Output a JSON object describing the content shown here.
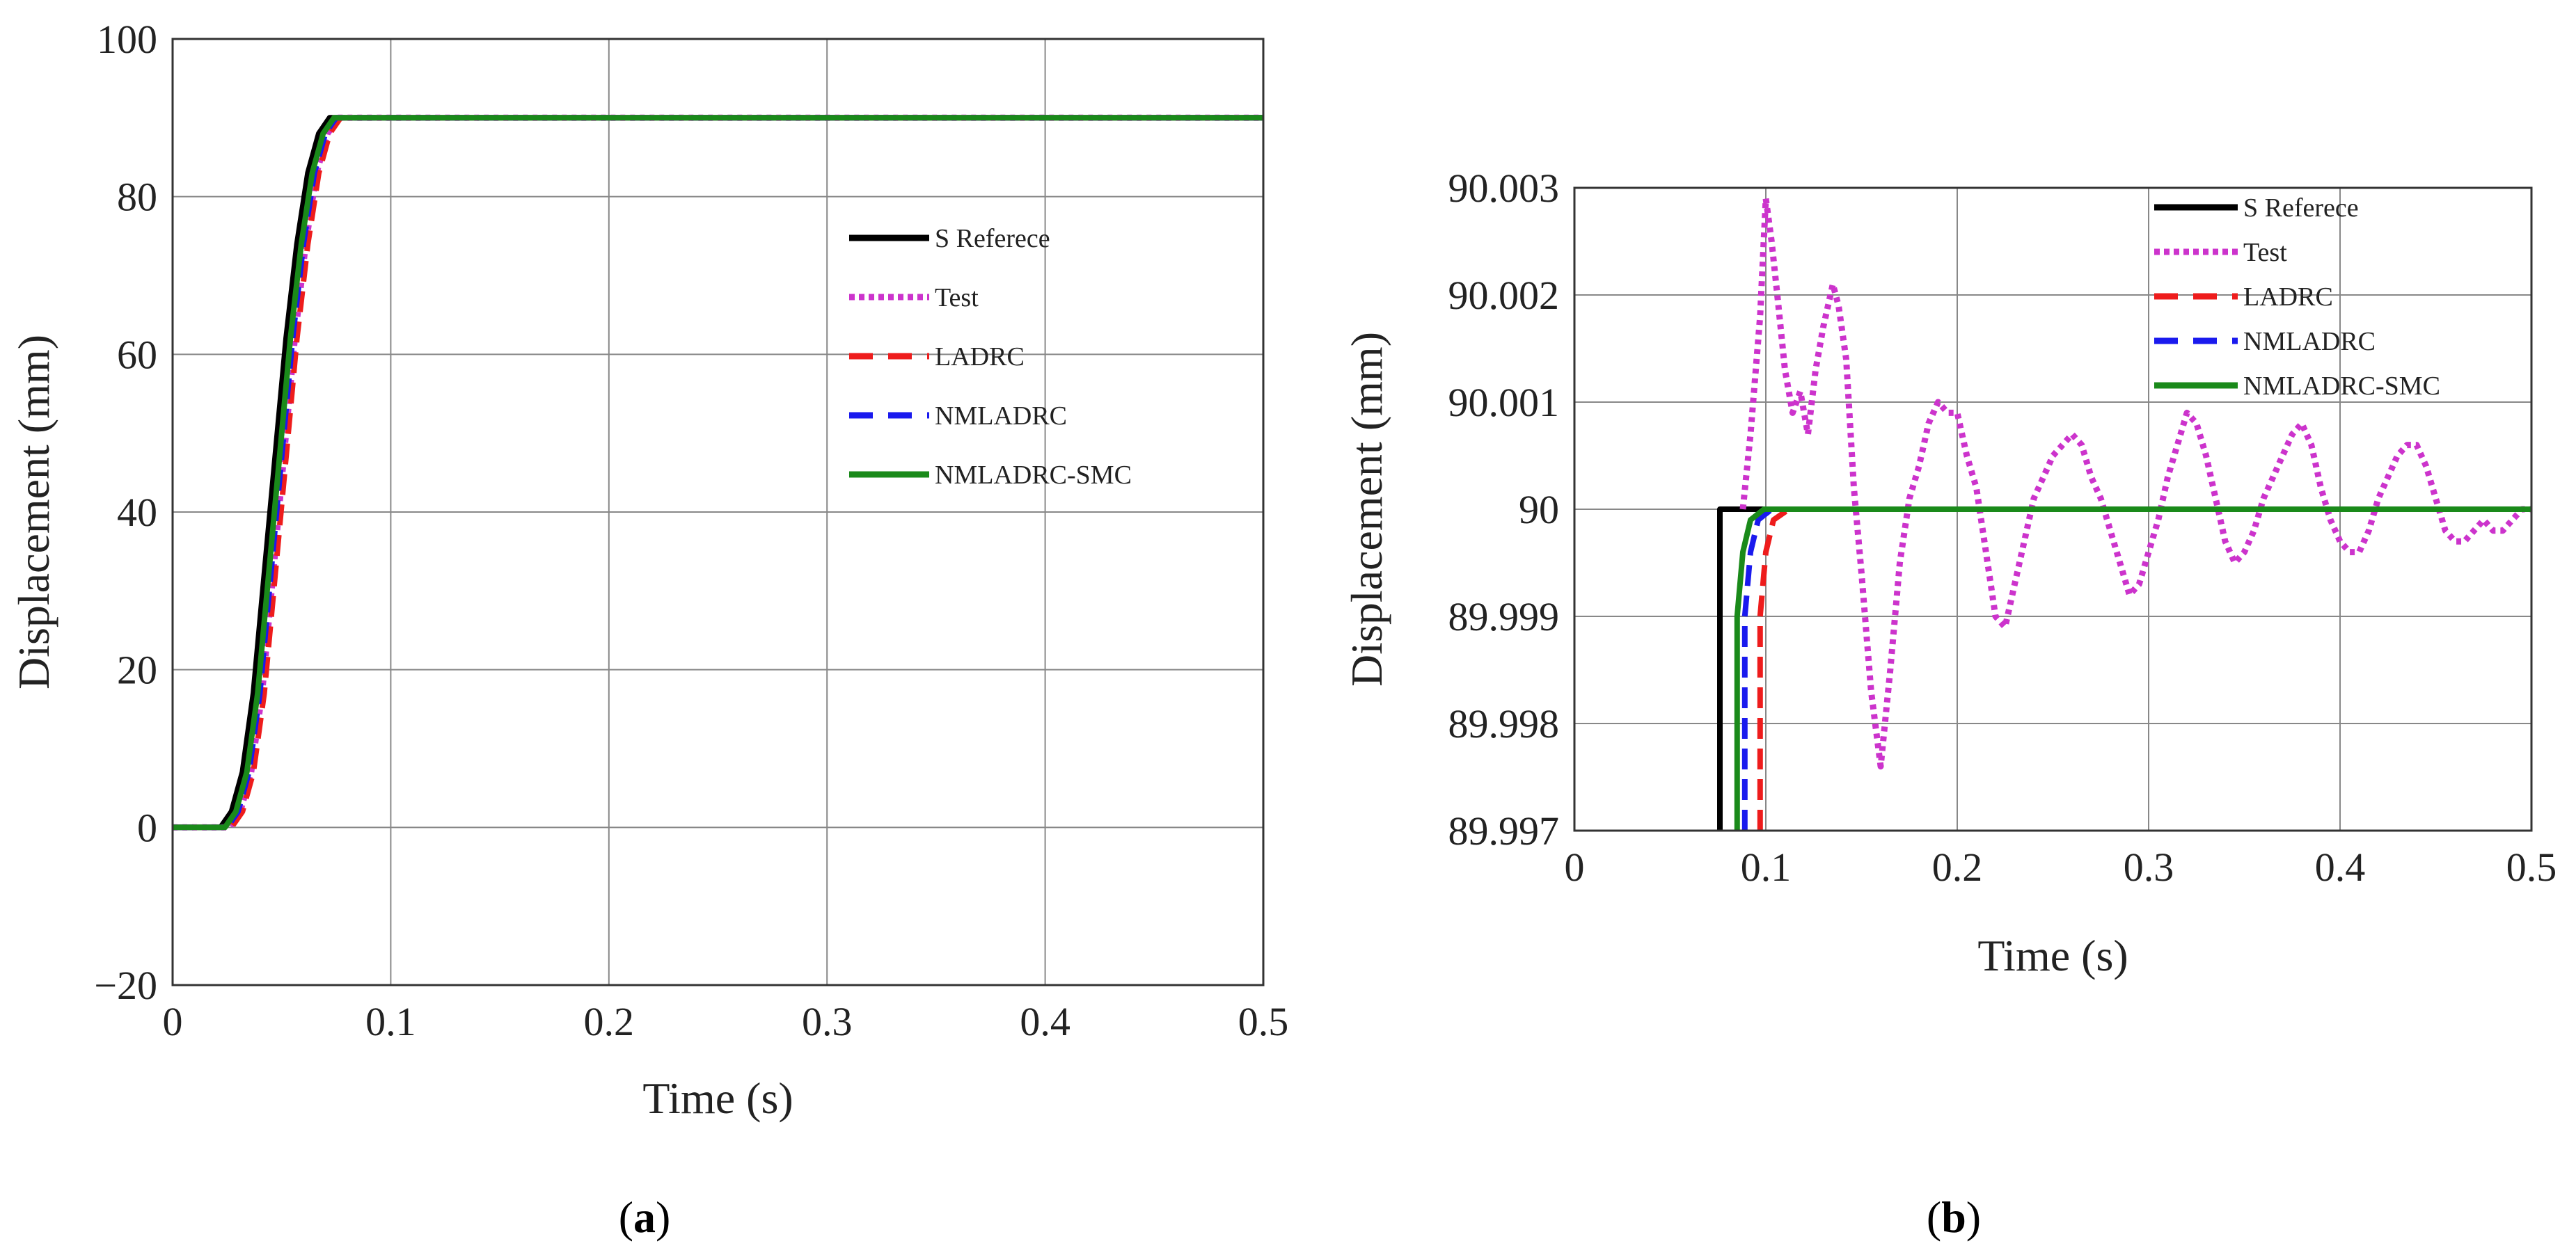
{
  "chart_data": [
    {
      "type": "line",
      "panel": "a",
      "caption": "(a)",
      "xlabel": "Time (s)",
      "ylabel": "Displacement (mm)",
      "xlim": [
        0,
        0.5
      ],
      "ylim": [
        -20,
        100
      ],
      "xticks": [
        0,
        0.1,
        0.2,
        0.3,
        0.4,
        0.5
      ],
      "xtick_labels": [
        "0",
        "0.1",
        "0.2",
        "0.3",
        "0.4",
        "0.5"
      ],
      "yticks": [
        -20,
        0,
        20,
        40,
        60,
        80,
        100
      ],
      "ytick_labels": [
        "−20",
        "0",
        "20",
        "40",
        "60",
        "80",
        "100"
      ],
      "grid": true,
      "legend": "right",
      "series": [
        {
          "name": "S Referece",
          "color": "#000000",
          "style": "solid",
          "x": [
            0,
            0.022,
            0.027,
            0.032,
            0.037,
            0.042,
            0.047,
            0.052,
            0.057,
            0.062,
            0.067,
            0.072,
            0.075,
            0.5
          ],
          "y": [
            0,
            0,
            2,
            7,
            17,
            32,
            47,
            62,
            74,
            83,
            88,
            90,
            90,
            90
          ]
        },
        {
          "name": "Test",
          "color": "#cc33cc",
          "style": "dotted",
          "x": [
            0,
            0.026,
            0.031,
            0.036,
            0.041,
            0.046,
            0.051,
            0.056,
            0.061,
            0.066,
            0.071,
            0.076,
            0.079,
            0.5
          ],
          "y": [
            0,
            0,
            2,
            7,
            17,
            32,
            47,
            62,
            74,
            83,
            88,
            90,
            90,
            90
          ]
        },
        {
          "name": "LADRC",
          "color": "#ee1c1c",
          "style": "dash",
          "x": [
            0,
            0.027,
            0.032,
            0.037,
            0.042,
            0.047,
            0.052,
            0.057,
            0.062,
            0.067,
            0.072,
            0.077,
            0.081,
            0.5
          ],
          "y": [
            0,
            0,
            2,
            7,
            17,
            32,
            47,
            62,
            74,
            83,
            88,
            90,
            90,
            90
          ]
        },
        {
          "name": "NMLADRC",
          "color": "#1a1aee",
          "style": "dash",
          "x": [
            0,
            0.025,
            0.03,
            0.035,
            0.04,
            0.045,
            0.05,
            0.055,
            0.06,
            0.065,
            0.07,
            0.075,
            0.078,
            0.5
          ],
          "y": [
            0,
            0,
            2,
            7,
            17,
            32,
            47,
            62,
            74,
            83,
            88,
            90,
            90,
            90
          ]
        },
        {
          "name": "NMLADRC-SMC",
          "color": "#1a8a1a",
          "style": "solid",
          "x": [
            0,
            0.024,
            0.029,
            0.034,
            0.039,
            0.044,
            0.049,
            0.054,
            0.059,
            0.064,
            0.069,
            0.074,
            0.077,
            0.5
          ],
          "y": [
            0,
            0,
            2,
            7,
            17,
            32,
            47,
            62,
            74,
            83,
            88,
            90,
            90,
            90
          ]
        }
      ]
    },
    {
      "type": "line",
      "panel": "b",
      "caption": "(b)",
      "xlabel": "Time (s)",
      "ylabel": "Displacement (mm)",
      "xlim": [
        0,
        0.5
      ],
      "ylim": [
        89.997,
        90.003
      ],
      "xticks": [
        0,
        0.1,
        0.2,
        0.3,
        0.4,
        0.5
      ],
      "xtick_labels": [
        "0",
        "0.1",
        "0.2",
        "0.3",
        "0.4",
        "0.5"
      ],
      "yticks": [
        89.997,
        89.998,
        89.999,
        90,
        90.001,
        90.002,
        90.003
      ],
      "ytick_labels": [
        "89.997",
        "89.998",
        "89.999",
        "90",
        "90.001",
        "90.002",
        "90.003"
      ],
      "grid": true,
      "legend": "top-right",
      "series": [
        {
          "name": "S Referece",
          "color": "#000000",
          "style": "solid",
          "x": [
            0.076,
            0.076,
            0.5
          ],
          "y": [
            89.997,
            90,
            90
          ]
        },
        {
          "name": "Test",
          "color": "#cc33cc",
          "style": "dotted",
          "x": [
            0.088,
            0.092,
            0.097,
            0.1,
            0.103,
            0.106,
            0.11,
            0.114,
            0.118,
            0.122,
            0.126,
            0.13,
            0.135,
            0.138,
            0.142,
            0.146,
            0.15,
            0.155,
            0.16,
            0.165,
            0.17,
            0.175,
            0.18,
            0.185,
            0.19,
            0.195,
            0.2,
            0.205,
            0.21,
            0.215,
            0.22,
            0.225,
            0.23,
            0.235,
            0.24,
            0.245,
            0.25,
            0.255,
            0.26,
            0.265,
            0.27,
            0.275,
            0.28,
            0.285,
            0.29,
            0.295,
            0.3,
            0.305,
            0.31,
            0.315,
            0.32,
            0.325,
            0.33,
            0.335,
            0.34,
            0.345,
            0.35,
            0.355,
            0.36,
            0.365,
            0.37,
            0.375,
            0.38,
            0.385,
            0.39,
            0.395,
            0.4,
            0.405,
            0.41,
            0.415,
            0.42,
            0.425,
            0.43,
            0.435,
            0.44,
            0.445,
            0.45,
            0.455,
            0.46,
            0.465,
            0.47,
            0.475,
            0.48,
            0.485,
            0.49,
            0.495,
            0.5
          ],
          "y": [
            90.0,
            90.0007,
            90.0018,
            90.0029,
            90.0025,
            90.002,
            90.0013,
            90.0009,
            90.0011,
            90.0007,
            90.0013,
            90.0017,
            90.0021,
            90.0019,
            90.0014,
            90.0002,
            89.9994,
            89.9983,
            89.9976,
            89.9985,
            89.9995,
            90.0001,
            90.0004,
            90.0008,
            90.001,
            90.0009,
            90.0009,
            90.0005,
            90.0002,
            89.9996,
            89.999,
            89.9989,
            89.9993,
            89.9997,
            90.0001,
            90.0003,
            90.0005,
            90.0006,
            90.0007,
            90.0006,
            90.0003,
            90.0001,
            89.9998,
            89.9995,
            89.9992,
            89.9993,
            89.9996,
            89.9999,
            90.0003,
            90.0006,
            90.0009,
            90.0008,
            90.0005,
            90.0001,
            89.9997,
            89.9995,
            89.9996,
            89.9998,
            90.0001,
            90.0003,
            90.0005,
            90.0007,
            90.0008,
            90.0006,
            90.0002,
            89.9999,
            89.9997,
            89.9996,
            89.9996,
            89.9998,
            90.0001,
            90.0003,
            90.0005,
            90.0006,
            90.0006,
            90.0004,
            90.0001,
            89.9998,
            89.9997,
            89.9997,
            89.9998,
            89.9999,
            89.9998,
            89.9998,
            89.9999,
            90.0,
            90.0
          ]
        },
        {
          "name": "LADRC",
          "color": "#ee1c1c",
          "style": "dash",
          "x": [
            0.097,
            0.097,
            0.1,
            0.104,
            0.112,
            0.5
          ],
          "y": [
            89.997,
            89.999,
            89.9996,
            89.9999,
            90,
            90
          ]
        },
        {
          "name": "NMLADRC",
          "color": "#1a1aee",
          "style": "dash",
          "x": [
            0.089,
            0.089,
            0.092,
            0.096,
            0.103,
            0.5
          ],
          "y": [
            89.997,
            89.999,
            89.9996,
            89.9999,
            90,
            90
          ]
        },
        {
          "name": "NMLADRC-SMC",
          "color": "#1a8a1a",
          "style": "solid",
          "x": [
            0.085,
            0.085,
            0.088,
            0.092,
            0.099,
            0.5
          ],
          "y": [
            89.997,
            89.999,
            89.9996,
            89.9999,
            90,
            90
          ]
        }
      ]
    }
  ]
}
